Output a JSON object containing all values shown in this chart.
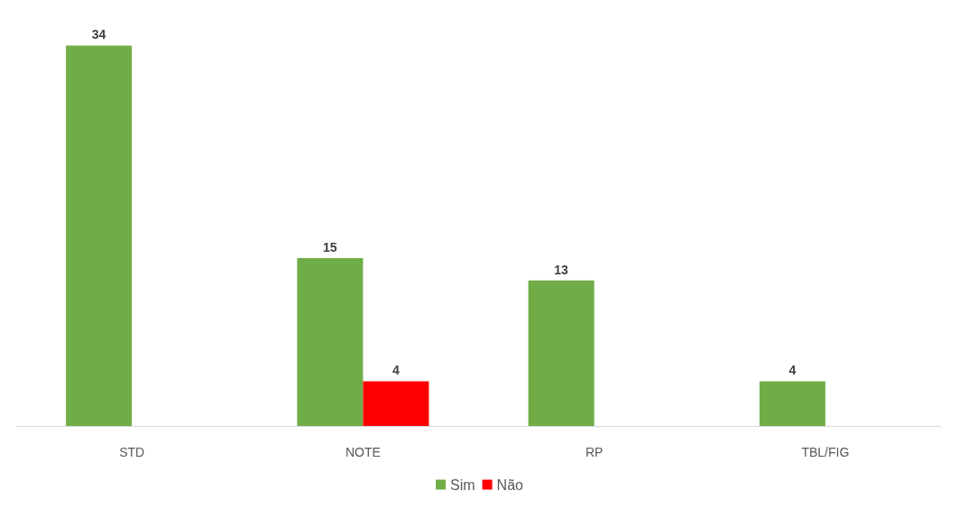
{
  "chart_data": {
    "type": "bar",
    "categories": [
      "STD",
      "NOTE",
      "RP",
      "TBL/FIG"
    ],
    "series": [
      {
        "name": "Sim",
        "color": "#70ad47",
        "values": [
          34,
          15,
          13,
          4
        ]
      },
      {
        "name": "Não",
        "color": "#ff0000",
        "values": [
          null,
          4,
          null,
          null
        ]
      }
    ],
    "data_labels": true,
    "legend": "bottom",
    "grid": false,
    "tick_labels": "x"
  }
}
